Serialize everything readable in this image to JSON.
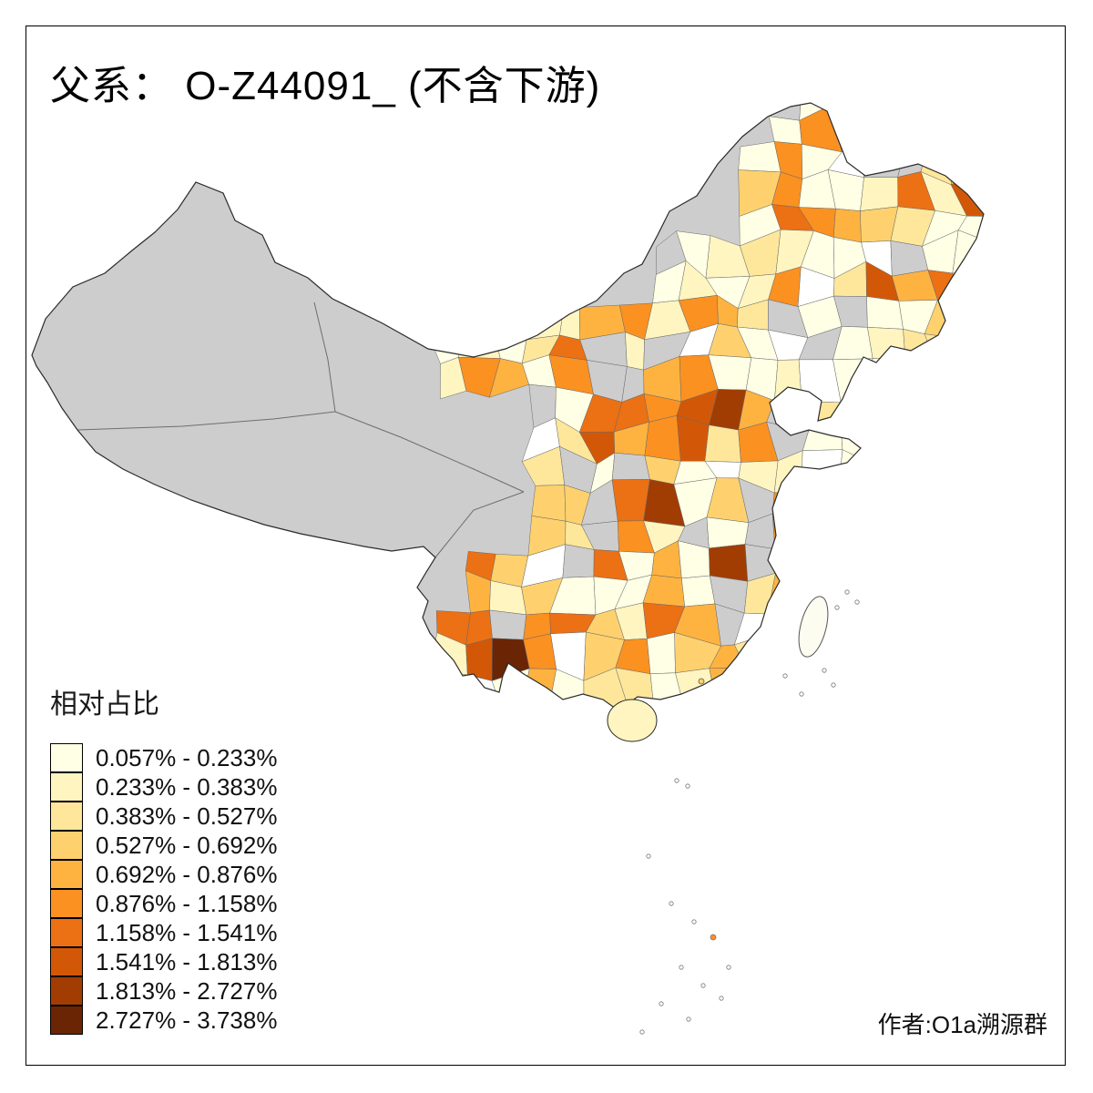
{
  "title": "父系：  O-Z44091_ (不含下游)",
  "legend": {
    "title": "相对占比",
    "items": [
      {
        "label": "0.057% - 0.233%",
        "color": "#FFFFE5"
      },
      {
        "label": "0.233% - 0.383%",
        "color": "#FFF5C0"
      },
      {
        "label": "0.383% - 0.527%",
        "color": "#FEE79B"
      },
      {
        "label": "0.527% - 0.692%",
        "color": "#FED16E"
      },
      {
        "label": "0.692% - 0.876%",
        "color": "#FEB341"
      },
      {
        "label": "0.876% - 1.158%",
        "color": "#FB9121"
      },
      {
        "label": "1.158% - 1.541%",
        "color": "#EC7014"
      },
      {
        "label": "1.541% - 1.813%",
        "color": "#D25808"
      },
      {
        "label": "1.813% - 2.727%",
        "color": "#A13D03"
      },
      {
        "label": "2.727% - 3.738%",
        "color": "#6A2505"
      }
    ]
  },
  "author": "作者:O1a溯源群",
  "map": {
    "no_data_color": "#CDCDCD",
    "border_color": "#2B2B2B",
    "cell_border_color": "#6A6A6A",
    "background": "#FFFFFF"
  }
}
